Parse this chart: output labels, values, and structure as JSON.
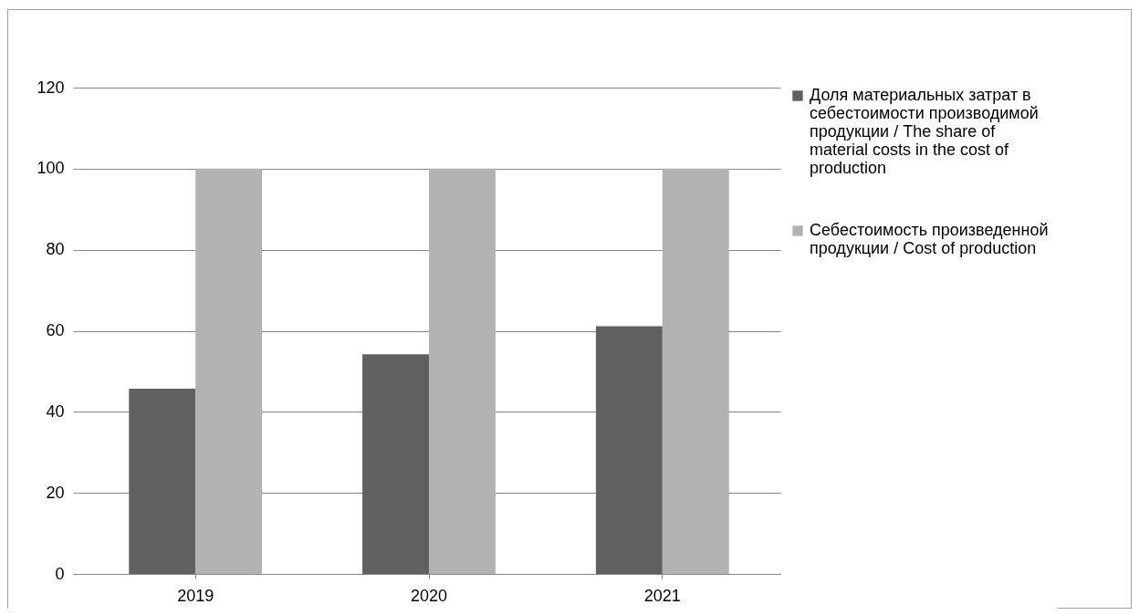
{
  "chart_data": {
    "type": "bar",
    "categories": [
      "2019",
      "2020",
      "2021"
    ],
    "series": [
      {
        "name": "Доля материальных затрат в себестоимости производимой продукции  / The share of material costs in the cost of production",
        "color": "#606060",
        "values": [
          45.7,
          54.2,
          61.1
        ]
      },
      {
        "name": "Себестоимость произведенной продукции / Cost of production",
        "color": "#b2b2b2",
        "values": [
          100,
          100,
          100
        ]
      }
    ],
    "ylim": [
      0,
      120
    ],
    "yticks": [
      0,
      20,
      40,
      60,
      80,
      100,
      120
    ],
    "grid": "y",
    "legend": "right"
  }
}
